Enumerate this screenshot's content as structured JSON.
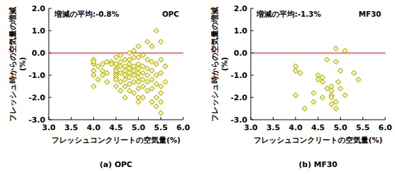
{
  "chart_data": [
    {
      "type": "scatter",
      "title": "(a) OPC",
      "annotations": [
        "増減の平均:-0.8%",
        "OPC"
      ],
      "x_label": "フレッシュコンクリートの空気量(%)",
      "y_label": [
        "フレッシュ時からの空気量の増減",
        "(%)"
      ],
      "color": "#ffff66",
      "marker": "diamond",
      "hline": 0,
      "xlim": [
        3,
        6
      ],
      "ylim": [
        -3,
        2
      ],
      "xticks": [
        {
          "value": 3,
          "label": "3.0"
        },
        {
          "value": 3.5,
          "label": "3.5"
        },
        {
          "value": 4,
          "label": "4.0"
        },
        {
          "value": 4.5,
          "label": "4.5"
        },
        {
          "value": 5,
          "label": "5.0"
        },
        {
          "value": 5.5,
          "label": "5.5"
        },
        {
          "value": 6,
          "label": "6.0"
        }
      ],
      "yticks": [
        {
          "value": -3,
          "label": "-3.0"
        },
        {
          "value": -2,
          "label": "-2.0"
        },
        {
          "value": -1,
          "label": "-1.0"
        },
        {
          "value": 0,
          "label": "0.0"
        },
        {
          "value": 1,
          "label": "1.0"
        },
        {
          "value": 2,
          "label": "2.0"
        }
      ],
      "x": [
        4.0,
        4.0,
        4.0,
        4.0,
        4.0,
        4.0,
        4.1,
        4.1,
        4.2,
        4.2,
        4.2,
        4.3,
        4.3,
        4.3,
        4.4,
        4.4,
        4.5,
        4.5,
        4.5,
        4.5,
        4.5,
        4.5,
        4.5,
        4.5,
        4.5,
        4.6,
        4.6,
        4.6,
        4.6,
        4.6,
        4.6,
        4.7,
        4.7,
        4.7,
        4.7,
        4.7,
        4.7,
        4.7,
        4.8,
        4.8,
        4.8,
        4.8,
        4.8,
        4.8,
        4.8,
        4.8,
        4.9,
        4.9,
        4.9,
        4.9,
        4.9,
        4.9,
        4.9,
        5.0,
        5.0,
        5.0,
        5.0,
        5.0,
        5.0,
        5.0,
        5.0,
        5.0,
        5.0,
        5.1,
        5.1,
        5.1,
        5.1,
        5.1,
        5.1,
        5.2,
        5.2,
        5.2,
        5.2,
        5.2,
        5.2,
        5.3,
        5.3,
        5.3,
        5.3,
        5.3,
        5.3,
        5.4,
        5.4,
        5.4,
        5.4,
        5.4,
        5.4,
        5.5,
        5.5,
        5.5,
        5.5,
        5.5,
        5.5,
        5.5,
        5.6,
        5.6
      ],
      "values": [
        -0.3,
        -0.5,
        -0.8,
        -1.0,
        -1.5,
        -0.4,
        -0.6,
        -1.2,
        -0.5,
        -0.8,
        -1.0,
        -0.4,
        -0.9,
        -1.3,
        -0.4,
        -0.5,
        -0.2,
        -0.5,
        -0.7,
        -0.9,
        -1.0,
        -1.1,
        -1.2,
        -1.5,
        -0.8,
        -0.4,
        -0.6,
        -0.9,
        -1.3,
        -1.7,
        -0.1,
        -0.3,
        -0.6,
        -0.8,
        -1.0,
        -1.2,
        -2.0,
        -1.5,
        0.0,
        -0.3,
        -0.5,
        -0.7,
        -0.9,
        -1.1,
        -1.4,
        -1.7,
        -0.2,
        -0.6,
        -0.8,
        -1.0,
        -1.3,
        -1.8,
        0.1,
        0.3,
        -0.2,
        -0.5,
        -0.7,
        -0.9,
        -1.1,
        -1.3,
        -1.6,
        -2.0,
        -2.2,
        -0.1,
        -0.6,
        -0.9,
        -1.2,
        -1.5,
        -2.0,
        0.5,
        -0.3,
        -0.7,
        -1.0,
        -1.3,
        -1.7,
        0.3,
        -0.4,
        -0.8,
        -1.2,
        -1.6,
        -2.2,
        1.0,
        -0.5,
        -1.0,
        -1.4,
        -2.0,
        -2.4,
        0.5,
        -0.3,
        -0.9,
        -1.5,
        -2.2,
        -2.7,
        -1.8,
        -0.6,
        -1.3
      ]
    },
    {
      "type": "scatter",
      "title": "(b) MF30",
      "annotations": [
        "増減の平均:-1.3%",
        "MF30"
      ],
      "x_label": "フレッシュコンクリートの空気量(%)",
      "y_label": [
        "フレッシュ時からの空気量の増減",
        "(%)"
      ],
      "color": "#ffff66",
      "marker": "diamond",
      "hline": 0,
      "xlim": [
        3,
        6
      ],
      "ylim": [
        -3,
        2
      ],
      "xticks": [
        {
          "value": 3,
          "label": "3.0"
        },
        {
          "value": 3.5,
          "label": "3.5"
        },
        {
          "value": 4,
          "label": "4.0"
        },
        {
          "value": 4.5,
          "label": "4.5"
        },
        {
          "value": 5,
          "label": "5.0"
        },
        {
          "value": 5.5,
          "label": "5.5"
        },
        {
          "value": 6,
          "label": "6.0"
        }
      ],
      "yticks": [
        {
          "value": -3,
          "label": "-3.0"
        },
        {
          "value": -2,
          "label": "-2.0"
        },
        {
          "value": -1,
          "label": "-1.0"
        },
        {
          "value": 0,
          "label": "0.0"
        },
        {
          "value": 1,
          "label": "1.0"
        },
        {
          "value": 2,
          "label": "2.0"
        }
      ],
      "x": [
        4.0,
        4.0,
        4.0,
        4.1,
        4.2,
        4.4,
        4.4,
        4.5,
        4.5,
        4.6,
        4.6,
        4.6,
        4.7,
        4.7,
        4.8,
        4.8,
        4.8,
        4.8,
        4.8,
        4.9,
        4.9,
        4.9,
        4.9,
        4.95,
        5.0,
        5.0,
        5.1,
        5.1,
        5.3,
        5.4
      ],
      "values": [
        -0.6,
        -0.8,
        -1.9,
        -0.9,
        -2.5,
        -1.8,
        -2.2,
        -1.0,
        -1.2,
        -1.1,
        -1.3,
        -2.0,
        -1.6,
        -0.3,
        -1.5,
        -1.7,
        -1.9,
        -2.3,
        -2.0,
        -0.4,
        -2.2,
        -2.5,
        0.2,
        -1.3,
        -0.8,
        -1.6,
        0.1,
        -1.9,
        -0.9,
        -1.2
      ]
    }
  ]
}
